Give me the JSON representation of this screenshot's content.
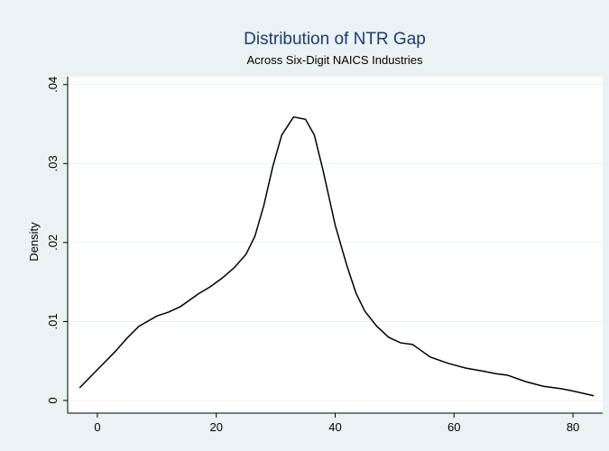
{
  "chart_data": {
    "type": "line",
    "title": "Distribution of NTR Gap",
    "subtitle": "Across Six-Digit NAICS Industries",
    "y_label": "Density",
    "x": [
      -3,
      0,
      3,
      5,
      7,
      10,
      12,
      14,
      17,
      19,
      21,
      23,
      25,
      26.5,
      28,
      29.5,
      31,
      33,
      35,
      36.5,
      38,
      40,
      42,
      43.5,
      45,
      47,
      49,
      51,
      53,
      56,
      59,
      62,
      65,
      67,
      69,
      72,
      75,
      78,
      80,
      83.5
    ],
    "values": [
      0.0016,
      0.0039,
      0.0062,
      0.0079,
      0.0094,
      0.0107,
      0.0112,
      0.0119,
      0.0135,
      0.0144,
      0.0155,
      0.0168,
      0.0185,
      0.0208,
      0.0247,
      0.0296,
      0.0336,
      0.0359,
      0.0356,
      0.0336,
      0.029,
      0.0222,
      0.017,
      0.0136,
      0.0113,
      0.0094,
      0.008,
      0.0073,
      0.0071,
      0.0055,
      0.0047,
      0.0041,
      0.0037,
      0.0034,
      0.0032,
      0.0024,
      0.0018,
      0.0015,
      0.0012,
      0.0006
    ],
    "color": "#000000",
    "xlim": [
      -5,
      85
    ],
    "xticks": [
      0,
      20,
      40,
      60,
      80
    ],
    "ylim": [
      -0.0016,
      0.041
    ],
    "yticks": [
      0,
      {
        "value": 0.01,
        "label": ".01"
      },
      {
        "value": 0.02,
        "label": ".02"
      },
      {
        "value": 0.03,
        "label": ".03"
      },
      {
        "value": 0.04,
        "label": ".04"
      }
    ],
    "grid": true
  }
}
